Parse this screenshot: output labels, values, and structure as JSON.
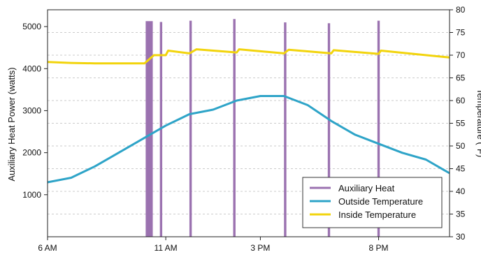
{
  "chart_data": {
    "type": "line",
    "title": "",
    "xlabel": "",
    "ylabel": "Auxiliary Heat Power (watts)",
    "y2label": "Temperature (°F)",
    "x_ticks": [
      {
        "hour": 6,
        "label": "6 AM"
      },
      {
        "hour": 11,
        "label": "11 AM"
      },
      {
        "hour": 15,
        "label": "3 PM"
      },
      {
        "hour": 20,
        "label": "8 PM"
      }
    ],
    "xlim": [
      6,
      23
    ],
    "ylim": [
      0,
      5400
    ],
    "y_ticks": [
      1000,
      2000,
      3000,
      4000,
      5000
    ],
    "y2lim": [
      30,
      80
    ],
    "y2_ticks": [
      30,
      35,
      40,
      45,
      50,
      55,
      60,
      65,
      70,
      75,
      80
    ],
    "grid": "horizontal dashed at every 5 °F",
    "legend_position": "bottom-right",
    "colors": {
      "auxiliary": "#9b72b0",
      "outside": "#2ea4c8",
      "inside": "#f2d40c",
      "grid": "#bbbbbb"
    },
    "series": [
      {
        "name": "Auxiliary Heat",
        "axis": "left",
        "type": "pulses",
        "pulses": [
          {
            "start": 10.15,
            "end": 10.45,
            "peak": 5130
          },
          {
            "start": 10.75,
            "end": 10.85,
            "peak": 5110
          },
          {
            "start": 12.0,
            "end": 12.1,
            "peak": 5140
          },
          {
            "start": 13.85,
            "end": 13.95,
            "peak": 5180
          },
          {
            "start": 16.0,
            "end": 16.1,
            "peak": 5100
          },
          {
            "start": 17.85,
            "end": 17.95,
            "peak": 5080
          },
          {
            "start": 19.95,
            "end": 20.05,
            "peak": 5140
          }
        ]
      },
      {
        "name": "Outside Temperature",
        "axis": "right",
        "points": [
          [
            6,
            42
          ],
          [
            7,
            43
          ],
          [
            8,
            45.5
          ],
          [
            9,
            48.5
          ],
          [
            10,
            51.5
          ],
          [
            11,
            54.5
          ],
          [
            12,
            57
          ],
          [
            13,
            58
          ],
          [
            14,
            60
          ],
          [
            15,
            61
          ],
          [
            16,
            61
          ],
          [
            17,
            59
          ],
          [
            18,
            55.5
          ],
          [
            19,
            52.5
          ],
          [
            20,
            50.5
          ],
          [
            21,
            48.5
          ],
          [
            22,
            47
          ],
          [
            23,
            44
          ]
        ]
      },
      {
        "name": "Inside Temperature",
        "axis": "right",
        "points": [
          [
            6,
            68.5
          ],
          [
            7,
            68.3
          ],
          [
            8,
            68.2
          ],
          [
            9,
            68.2
          ],
          [
            10.1,
            68.2
          ],
          [
            10.5,
            70
          ],
          [
            11,
            70
          ],
          [
            11.1,
            71
          ],
          [
            12,
            70.4
          ],
          [
            12.3,
            71.3
          ],
          [
            14,
            70.6
          ],
          [
            14.1,
            71.3
          ],
          [
            16,
            70.4
          ],
          [
            16.2,
            71.2
          ],
          [
            18,
            70.4
          ],
          [
            18.1,
            71.1
          ],
          [
            20,
            70.3
          ],
          [
            20.1,
            71
          ],
          [
            23,
            69.5
          ]
        ]
      }
    ]
  }
}
